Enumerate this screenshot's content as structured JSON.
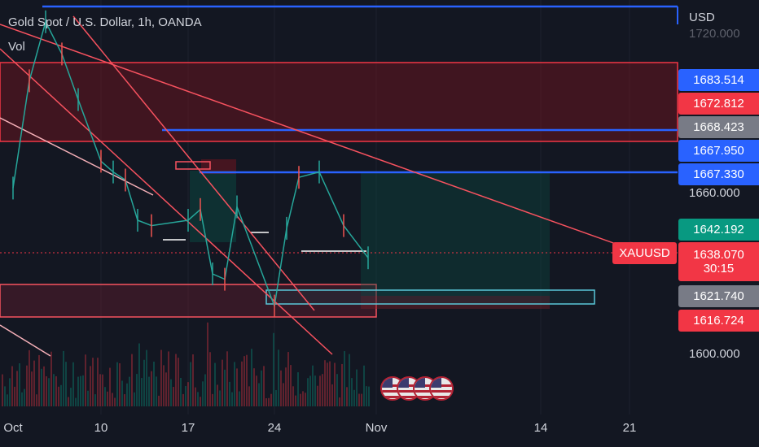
{
  "header": {
    "title": "Gold Spot / U.S. Dollar, 1h, OANDA",
    "volume_label": "Vol",
    "currency": "USD"
  },
  "price_axis": {
    "tick_labels": [
      "1720.000",
      "1660.000",
      "1600.000"
    ]
  },
  "price_tags": [
    {
      "id": "t1",
      "value": "1683.514",
      "color": "#2962ff"
    },
    {
      "id": "t2",
      "value": "1672.812",
      "color": "#f23645"
    },
    {
      "id": "t3",
      "value": "1668.423",
      "color": "#787b86"
    },
    {
      "id": "t4",
      "value": "1667.950",
      "color": "#2962ff"
    },
    {
      "id": "t5",
      "value": "1667.330",
      "color": "#2962ff"
    },
    {
      "id": "t6",
      "value": "1642.192",
      "color": "#089981"
    },
    {
      "id": "t7",
      "value": "1638.070",
      "color": "#f23645"
    },
    {
      "id": "t8",
      "value": "1621.740",
      "color": "#787b86"
    },
    {
      "id": "t9",
      "value": "1616.724",
      "color": "#f23645"
    }
  ],
  "current": {
    "symbol": "XAUUSD",
    "price": "1638.070",
    "countdown": "30:15"
  },
  "time_axis": [
    "Oct",
    "10",
    "17",
    "24",
    "Nov",
    "14",
    "21"
  ],
  "events": {
    "icon": "us-flag-icon",
    "count": 4
  },
  "chart_data": {
    "type": "line",
    "title": "Gold Spot / U.S. Dollar, 1h, OANDA",
    "xlabel": "",
    "ylabel": "USD",
    "ylim": [
      1585,
      1730
    ],
    "x": [
      "Oct 3",
      "Oct 4",
      "Oct 5",
      "Oct 6",
      "Oct 7",
      "Oct 10",
      "Oct 11",
      "Oct 12",
      "Oct 13",
      "Oct 14",
      "Oct 17",
      "Oct 18",
      "Oct 19",
      "Oct 20",
      "Oct 21",
      "Oct 24",
      "Oct 25",
      "Oct 26",
      "Oct 27",
      "Oct 28",
      "Oct 31"
    ],
    "series": [
      {
        "values": [
          1662,
          1702,
          1724,
          1712,
          1695,
          1672,
          1668,
          1665,
          1650,
          1648,
          1650,
          1654,
          1630,
          1628,
          1655,
          1618,
          1647,
          1666,
          1668,
          1648,
          1636
        ]
      }
    ],
    "levels": [
      1683.514,
      1672.812,
      1668.423,
      1667.95,
      1667.33,
      1642.192,
      1638.07,
      1621.74,
      1616.724
    ],
    "grid": true,
    "legend": "none"
  }
}
